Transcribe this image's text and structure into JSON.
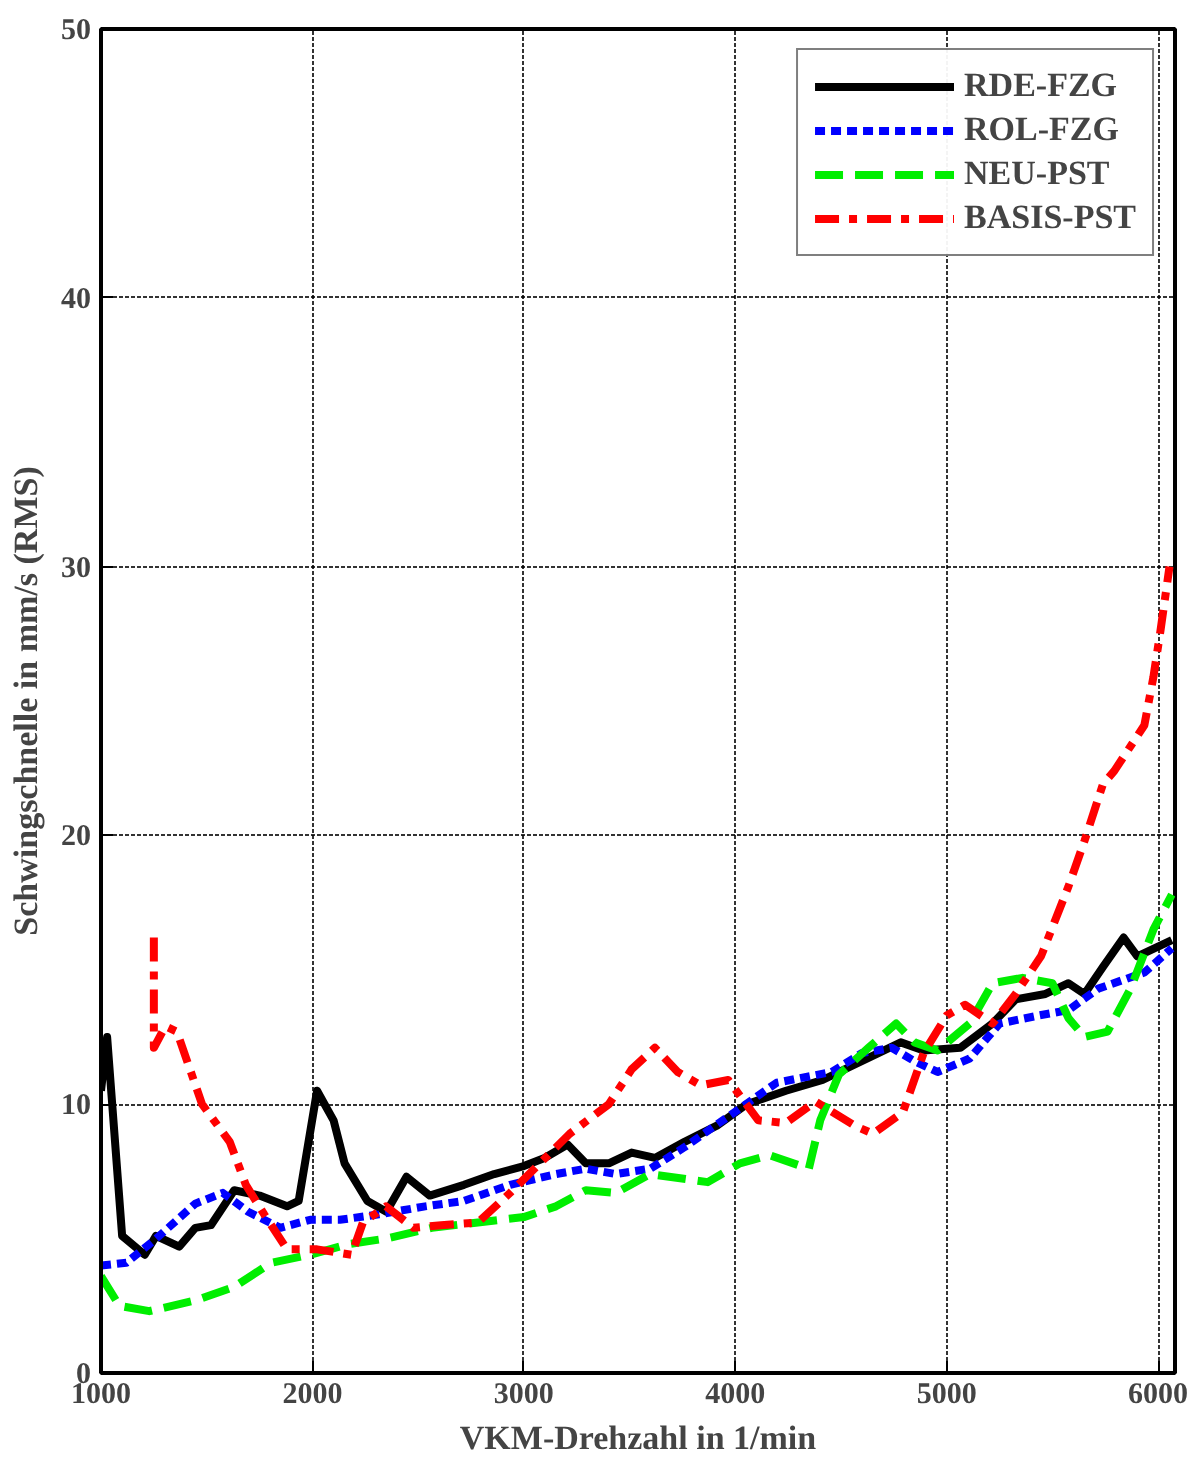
{
  "chart_data": {
    "type": "line",
    "xlabel": "VKM-Drehzahl in 1/min",
    "ylabel": "Schwingschnelle in mm/s (RMS)",
    "xlim": [
      1000,
      6080
    ],
    "ylim": [
      0,
      50
    ],
    "xticks": [
      1000,
      2000,
      3000,
      4000,
      5000,
      6000
    ],
    "yticks": [
      0,
      10,
      20,
      30,
      40,
      50
    ],
    "grid": true,
    "legend": "top right",
    "series": [
      {
        "name": "RDE-FZG",
        "color": "#000000",
        "line_style": "solid",
        "x": [
          1000,
          1029,
          1100,
          1207,
          1260,
          1370,
          1446,
          1520,
          1630,
          1750,
          1880,
          1935,
          2022,
          2100,
          2152,
          2260,
          2350,
          2445,
          2555,
          2717,
          2860,
          3000,
          3098,
          3207,
          3293,
          3402,
          3510,
          3620,
          3760,
          3913,
          4054,
          4240,
          4413,
          4598,
          4783,
          4891,
          5065,
          5217,
          5326,
          5467,
          5576,
          5652,
          5739,
          5837,
          5902,
          6065
        ],
        "values": [
          10.5,
          12.5,
          5.1,
          4.4,
          5.1,
          4.7,
          5.4,
          5.5,
          6.8,
          6.6,
          6.2,
          6.4,
          10.5,
          9.4,
          7.8,
          6.4,
          6.0,
          7.3,
          6.6,
          7.0,
          7.4,
          7.7,
          8.0,
          8.5,
          7.8,
          7.8,
          8.2,
          8.0,
          8.6,
          9.2,
          10.0,
          10.5,
          10.9,
          11.6,
          12.3,
          12.0,
          12.1,
          13.0,
          13.9,
          14.1,
          14.5,
          14.1,
          15.1,
          16.2,
          15.5,
          16.1
        ]
      },
      {
        "name": "ROL-FZG",
        "color": "#0000ff",
        "line_style": "dotted",
        "x": [
          1000,
          1120,
          1261,
          1446,
          1576,
          1696,
          1848,
          1989,
          2130,
          2315,
          2533,
          2717,
          2935,
          3152,
          3293,
          3435,
          3598,
          3760,
          3978,
          4196,
          4457,
          4598,
          4740,
          4848,
          4957,
          5109,
          5250,
          5435,
          5576,
          5717,
          5935,
          6065
        ],
        "values": [
          4.0,
          4.1,
          5.0,
          6.3,
          6.7,
          6.0,
          5.4,
          5.7,
          5.7,
          5.9,
          6.2,
          6.4,
          7.0,
          7.4,
          7.6,
          7.4,
          7.6,
          8.4,
          9.6,
          10.8,
          11.2,
          11.9,
          12.1,
          11.6,
          11.2,
          11.7,
          13.0,
          13.3,
          13.5,
          14.3,
          14.9,
          15.8
        ]
      },
      {
        "name": "NEU-PST",
        "color": "#00ee00",
        "line_style": "dashed",
        "x": [
          1000,
          1087,
          1228,
          1446,
          1630,
          1804,
          1989,
          2174,
          2348,
          2565,
          2783,
          3000,
          3152,
          3293,
          3435,
          3598,
          3870,
          4022,
          4163,
          4348,
          4402,
          4490,
          4630,
          4761,
          4848,
          4957,
          5109,
          5217,
          5359,
          5500,
          5576,
          5652,
          5761,
          5870,
          5978,
          6065
        ],
        "values": [
          3.6,
          2.5,
          2.3,
          2.7,
          3.2,
          4.1,
          4.4,
          4.8,
          5.0,
          5.4,
          5.6,
          5.8,
          6.2,
          6.8,
          6.7,
          7.4,
          7.1,
          7.8,
          8.1,
          7.6,
          9.4,
          11.1,
          12.1,
          13.0,
          12.3,
          12.0,
          13.0,
          14.5,
          14.7,
          14.5,
          13.2,
          12.5,
          12.7,
          14.3,
          16.5,
          17.8
        ]
      },
      {
        "name": "BASIS-PST",
        "color": "#ff0000",
        "line_style": "dashdot",
        "x": [
          1250,
          1250,
          1304,
          1359,
          1478,
          1609,
          1685,
          1772,
          1880,
          2022,
          2185,
          2239,
          2348,
          2478,
          2609,
          2783,
          2935,
          3076,
          3217,
          3402,
          3510,
          3620,
          3728,
          3837,
          3967,
          4109,
          4239,
          4380,
          4565,
          4652,
          4793,
          4891,
          5000,
          5087,
          5217,
          5326,
          5446,
          5576,
          5652,
          5739,
          5793,
          5935,
          5978,
          6011,
          6054
        ],
        "values": [
          16.2,
          12.1,
          12.9,
          12.7,
          10.0,
          8.6,
          7.0,
          5.9,
          4.6,
          4.6,
          4.4,
          5.6,
          6.2,
          5.4,
          5.5,
          5.6,
          6.7,
          7.8,
          8.9,
          10.0,
          11.3,
          12.1,
          11.2,
          10.7,
          10.9,
          9.4,
          9.3,
          10.1,
          9.2,
          8.9,
          9.7,
          11.9,
          13.3,
          13.7,
          13.0,
          14.1,
          15.5,
          18.1,
          19.8,
          21.9,
          22.4,
          24.1,
          25.9,
          27.6,
          30.0
        ]
      }
    ]
  }
}
